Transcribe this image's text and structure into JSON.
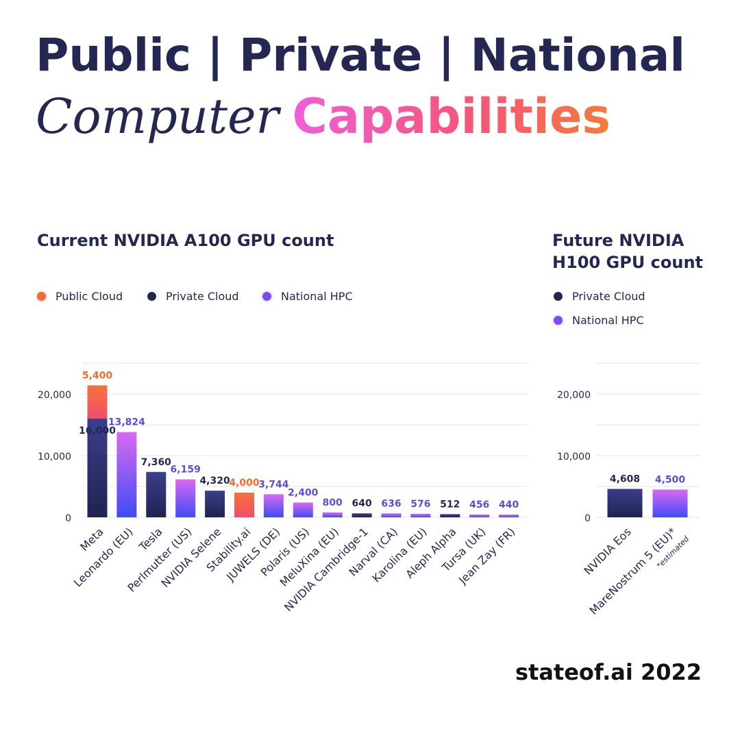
{
  "title": {
    "line1": "Public | Private | National",
    "line2_serif": "Computer",
    "line2_gradient": "Capabilities"
  },
  "footer": "stateof.ai 2022",
  "colors": {
    "public_cloud": "#f26a3a",
    "private_cloud": "#232752",
    "national_hpc": "#7b4cf2"
  },
  "chart_data": [
    {
      "type": "bar",
      "title": "Current NVIDIA A100 GPU count",
      "legend": [
        "Public Cloud",
        "Private Cloud",
        "National HPC"
      ],
      "yticks": [
        "0",
        "10,000",
        "20,000"
      ],
      "ylim": [
        0,
        25000
      ],
      "grid": true,
      "categories": [
        "Meta",
        "Leonardo (EU)",
        "Tesla",
        "Perlmutter (US)",
        "NVIDIA Selene",
        "Stability.ai",
        "JUWELS (DE)",
        "Polaris (US)",
        "MeluXina (EU)",
        "NVIDIA Cambridge-1",
        "Narval (CA)",
        "Karolina (EU)",
        "Aleph Alpha",
        "Tursa (UK)",
        "Jean Zay (FR)"
      ],
      "series": [
        {
          "name": "Private Cloud",
          "values": [
            16000,
            0,
            7360,
            0,
            4320,
            0,
            0,
            0,
            0,
            640,
            0,
            0,
            512,
            0,
            0
          ]
        },
        {
          "name": "National HPC",
          "values": [
            0,
            13824,
            0,
            6159,
            0,
            0,
            3744,
            2400,
            800,
            0,
            636,
            576,
            0,
            456,
            440
          ]
        },
        {
          "name": "Public Cloud",
          "values": [
            5400,
            0,
            0,
            0,
            0,
            4000,
            0,
            0,
            0,
            0,
            0,
            0,
            0,
            0,
            0
          ]
        }
      ],
      "value_labels": [
        "16,000",
        "5,400",
        "13,824",
        "7,360",
        "6,159",
        "4,320",
        "4,000",
        "3,744",
        "2,400",
        "800",
        "640",
        "636",
        "576",
        "512",
        "456",
        "440"
      ]
    },
    {
      "type": "bar",
      "title": "Future NVIDIA H100 GPU count",
      "title_lines": [
        "Future NVIDIA",
        "H100 GPU count"
      ],
      "legend": [
        "Private Cloud",
        "National HPC"
      ],
      "yticks": [
        "0",
        "10,000",
        "20,000"
      ],
      "ylim": [
        0,
        25000
      ],
      "grid": true,
      "categories": [
        "NVIDIA Eos",
        "MareNostrum 5 (EU)*"
      ],
      "annotation": "*estimated",
      "series": [
        {
          "name": "Private Cloud",
          "values": [
            4608,
            0
          ]
        },
        {
          "name": "National HPC",
          "values": [
            0,
            4500
          ]
        }
      ],
      "value_labels": [
        "4,608",
        "4,500"
      ]
    }
  ]
}
